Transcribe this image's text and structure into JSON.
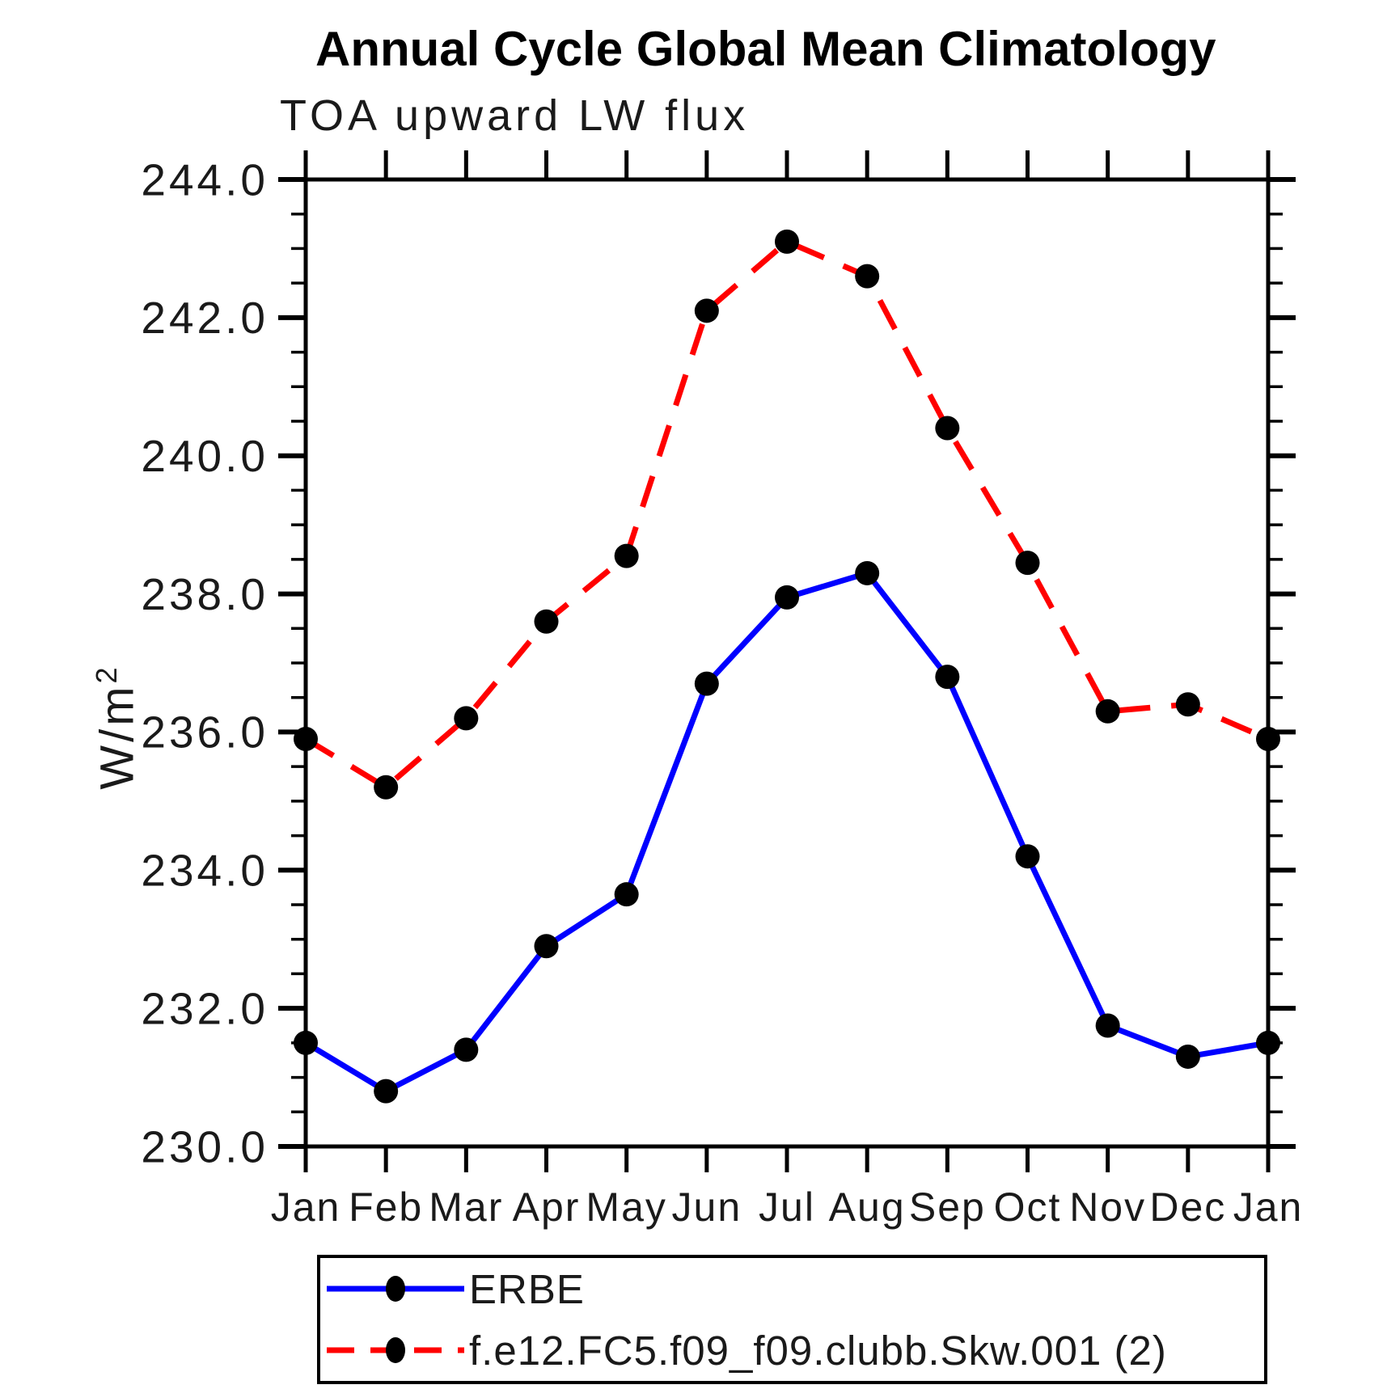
{
  "title": "Annual Cycle Global Mean Climatology",
  "subtitle": "TOA upward LW flux",
  "y_axis": {
    "label_base": "W/m",
    "label_sup": "2"
  },
  "chart_data": {
    "type": "line",
    "title": "Annual Cycle Global Mean Climatology",
    "subtitle": "TOA upward LW flux",
    "xlabel": "",
    "ylabel": "W/m^2",
    "ylim": [
      230.0,
      244.0
    ],
    "ytick_major": 2.0,
    "ytick_minor": 0.5,
    "ytick_label_format": "one-decimal",
    "grid": false,
    "legend_position": "bottom-boxed",
    "categories": [
      "Jan",
      "Feb",
      "Mar",
      "Apr",
      "May",
      "Jun",
      "Jul",
      "Aug",
      "Sep",
      "Oct",
      "Nov",
      "Dec",
      "Jan"
    ],
    "series": [
      {
        "name": "ERBE",
        "color": "#0000ff",
        "line_style": "solid",
        "marker": "filled-circle",
        "marker_color": "#000000",
        "values": [
          231.5,
          230.8,
          231.4,
          232.9,
          233.65,
          236.7,
          237.95,
          238.3,
          236.8,
          234.2,
          231.75,
          231.3,
          231.5
        ]
      },
      {
        "name": "f.e12.FC5.f09_f09.clubb.Skw.001 (2)",
        "color": "#ff0000",
        "line_style": "dashed",
        "marker": "filled-circle",
        "marker_color": "#000000",
        "values": [
          235.9,
          235.2,
          236.2,
          237.6,
          238.55,
          242.1,
          243.1,
          242.6,
          240.4,
          238.45,
          236.3,
          236.4,
          235.9
        ]
      }
    ]
  }
}
